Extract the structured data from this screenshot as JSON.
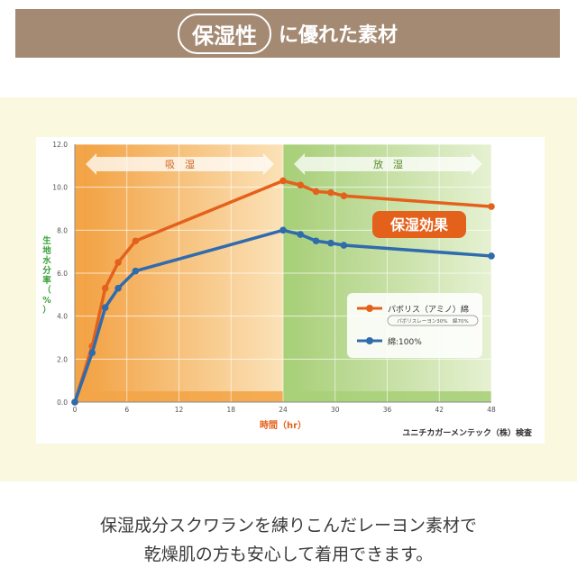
{
  "banner": {
    "highlight": "保湿性",
    "rest": "に優れた素材",
    "bg_color": "#a48a73"
  },
  "caption": {
    "line1": "保湿成分スクワランを練りこんだレーヨン素材で",
    "line2": "乾燥肌の方も安心して着用できます。"
  },
  "chart_data": {
    "type": "line",
    "ylabel": "生地水分率（%）",
    "xlabel": "時間（hr）",
    "xlim": [
      0,
      48
    ],
    "ylim": [
      0,
      12
    ],
    "xticks": [
      0,
      6,
      12,
      18,
      24,
      30,
      36,
      42,
      48
    ],
    "yticks": [
      0,
      2,
      4,
      6,
      8,
      10,
      12
    ],
    "ytick_labels": [
      "0.0",
      "2.0",
      "4.0",
      "6.0",
      "8.0",
      "10.0",
      "12.0"
    ],
    "grid": true,
    "phases": [
      {
        "label": "吸　湿",
        "from": 0,
        "to": 24,
        "color": "#f3a548"
      },
      {
        "label": "放　湿",
        "from": 24,
        "to": 48,
        "color": "#a9d079"
      }
    ],
    "series": [
      {
        "name": "パボリス（アミノ）綿",
        "sublabel": "パボリスレーヨン30%　綿70%",
        "color": "#e4611c",
        "x": [
          0,
          2,
          3.5,
          5,
          7,
          24,
          26,
          27.8,
          29.5,
          31,
          48
        ],
        "y": [
          0,
          2.6,
          5.3,
          6.5,
          7.5,
          10.3,
          10.1,
          9.8,
          9.75,
          9.6,
          9.1
        ]
      },
      {
        "name": "綿:100%",
        "color": "#2f6bad",
        "x": [
          0,
          2,
          3.5,
          5,
          7,
          24,
          26,
          27.8,
          29.5,
          31,
          48
        ],
        "y": [
          0,
          2.3,
          4.4,
          5.3,
          6.1,
          8.0,
          7.8,
          7.5,
          7.4,
          7.3,
          6.8
        ]
      }
    ],
    "annotation": "保湿効果",
    "annotation_color": "#e4611c",
    "source": "ユニチカガーメンテック（株）検査",
    "legend_position": "center-right"
  }
}
